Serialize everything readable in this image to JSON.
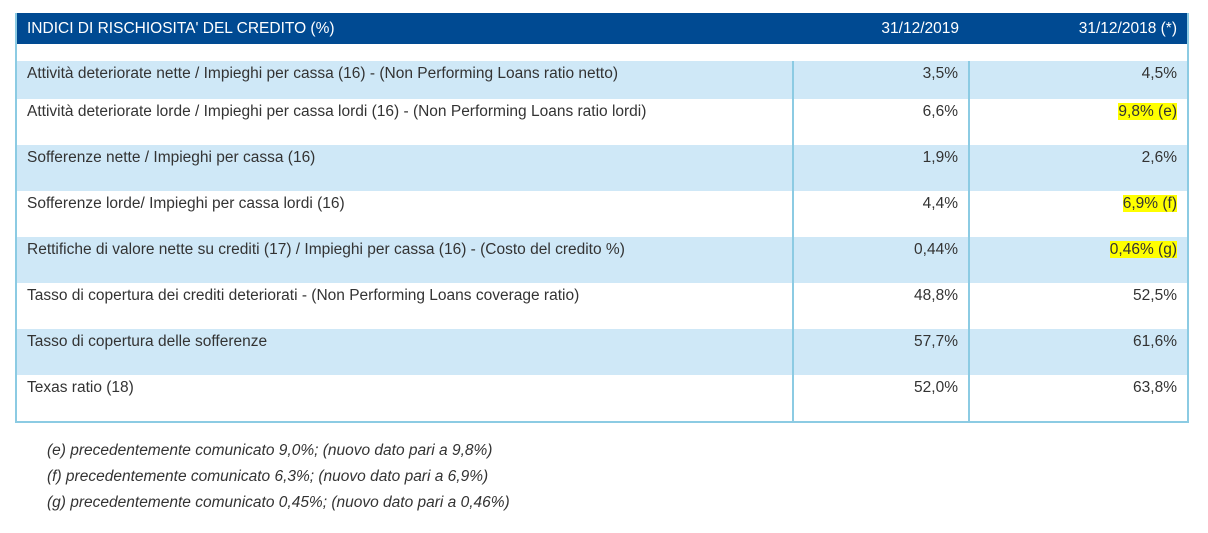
{
  "table": {
    "header": {
      "label": "INDICI DI RISCHIOSITA' DEL CREDITO (%)",
      "col1": "31/12/2019",
      "col2": "31/12/2018 (*)"
    },
    "rows": [
      {
        "label": "Attività deteriorate nette / Impieghi per cassa (16) - (Non Performing Loans ratio netto)",
        "v2019": "3,5%",
        "v2018": "4,5%",
        "highlight_2018": false
      },
      {
        "label": "Attività deteriorate lorde / Impieghi per cassa lordi (16) - (Non Performing Loans ratio lordi)",
        "v2019": "6,6%",
        "v2018": "9,8% (e)",
        "highlight_2018": true
      },
      {
        "label": "Sofferenze nette / Impieghi per cassa (16)",
        "v2019": "1,9%",
        "v2018": "2,6%",
        "highlight_2018": false
      },
      {
        "label": "Sofferenze lorde/ Impieghi per cassa lordi (16)",
        "v2019": "4,4%",
        "v2018": "6,9% (f)",
        "highlight_2018": true
      },
      {
        "label": "Rettifiche di valore nette su crediti (17) / Impieghi per cassa (16) - (Costo del credito %)",
        "v2019": "0,44%",
        "v2018": "0,46% (g)",
        "highlight_2018": true
      },
      {
        "label": "Tasso di copertura dei crediti deteriorati - (Non Performing Loans coverage ratio)",
        "v2019": "48,8%",
        "v2018": "52,5%",
        "highlight_2018": false
      },
      {
        "label": "Tasso di copertura delle sofferenze",
        "v2019": "57,7%",
        "v2018": "61,6%",
        "highlight_2018": false
      },
      {
        "label": "Texas ratio (18)",
        "v2019": "52,0%",
        "v2018": "63,8%",
        "highlight_2018": false
      }
    ]
  },
  "notes": [
    "(e) precedentemente comunicato 9,0%; (nuovo dato pari a 9,8%)",
    "(f) precedentemente comunicato 6,3%; (nuovo dato pari a 6,9%)",
    "(g) precedentemente comunicato 0,45%; (nuovo dato pari a 0,46%)"
  ],
  "colors": {
    "header_bg": "#004a92",
    "row_shade": "#cfe8f7",
    "border": "#8ccbe3",
    "highlight": "#ffff00"
  }
}
